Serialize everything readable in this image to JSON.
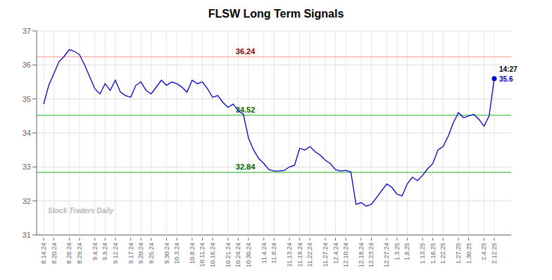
{
  "chart_data": {
    "type": "line",
    "title": "FLSW Long Term Signals",
    "categories": [
      "8.14.24",
      null,
      "8.20.24",
      null,
      null,
      "8.26.24",
      null,
      "8.29.24",
      null,
      null,
      "9.4.24",
      null,
      "9.9.24",
      null,
      "9.12.24",
      null,
      null,
      "9.17.24",
      null,
      "9.20.24",
      null,
      "9.25.24",
      null,
      null,
      "9.30.24",
      null,
      "10.3.24",
      null,
      null,
      "10.8.24",
      null,
      "10.11.24",
      null,
      "10.16.24",
      null,
      null,
      "10.21.24",
      null,
      "10.24.24",
      null,
      "10.30.24",
      null,
      null,
      "11.4.24",
      null,
      "11.8.24",
      null,
      null,
      "11.13.24",
      null,
      "11.19.24",
      null,
      "11.22.24",
      null,
      null,
      "11.27.24",
      null,
      "12.4.24",
      null,
      "12.10.24",
      null,
      null,
      "12.18.24",
      null,
      "12.23.24",
      null,
      null,
      "12.27.24",
      null,
      "1.3.25",
      null,
      "1.8.25",
      null,
      null,
      "1.13.25",
      null,
      "1.16.25",
      null,
      "1.22.25",
      null,
      null,
      "1.27.25",
      null,
      "1.30.25",
      null,
      null,
      "2.4.25",
      null,
      "2.12.25"
    ],
    "series": [
      {
        "color": "#0000cc",
        "marker": "end",
        "values": [
          34.85,
          35.4,
          35.75,
          36.1,
          36.25,
          36.45,
          36.4,
          36.3,
          36.0,
          35.65,
          35.3,
          35.15,
          35.45,
          35.25,
          35.55,
          35.2,
          35.1,
          35.05,
          35.4,
          35.5,
          35.25,
          35.15,
          35.35,
          35.55,
          35.4,
          35.5,
          35.45,
          35.35,
          35.2,
          35.55,
          35.45,
          35.5,
          35.3,
          35.05,
          35.1,
          34.9,
          34.75,
          34.85,
          34.65,
          34.55,
          33.85,
          33.5,
          33.25,
          33.1,
          32.92,
          32.88,
          32.88,
          32.9,
          33.0,
          33.05,
          33.55,
          33.5,
          33.6,
          33.45,
          33.35,
          33.2,
          33.1,
          32.92,
          32.88,
          32.9,
          32.85,
          31.9,
          31.95,
          31.85,
          31.9,
          32.1,
          32.3,
          32.5,
          32.4,
          32.2,
          32.15,
          32.5,
          32.7,
          32.6,
          32.75,
          32.95,
          33.1,
          33.5,
          33.6,
          33.9,
          34.3,
          34.6,
          34.45,
          34.5,
          34.55,
          34.4,
          34.2,
          34.5,
          35.6
        ]
      }
    ],
    "reference_lines": [
      {
        "value": 36.24,
        "color": "#ffb3b3",
        "label": "36.24",
        "label_color": "#8b0000"
      },
      {
        "value": 34.52,
        "color": "#66cc66",
        "label": "34.52",
        "label_color": "#006400"
      },
      {
        "value": 32.84,
        "color": "#66cc66",
        "label": "32.84",
        "label_color": "#006400"
      }
    ],
    "last_time": "14:27",
    "watermark": {
      "text": "Stock Traders Daily",
      "color": "gray"
    },
    "ylim": [
      31,
      37
    ],
    "yticks": [
      31,
      32,
      33,
      34,
      35,
      36,
      37
    ],
    "grid": true
  }
}
